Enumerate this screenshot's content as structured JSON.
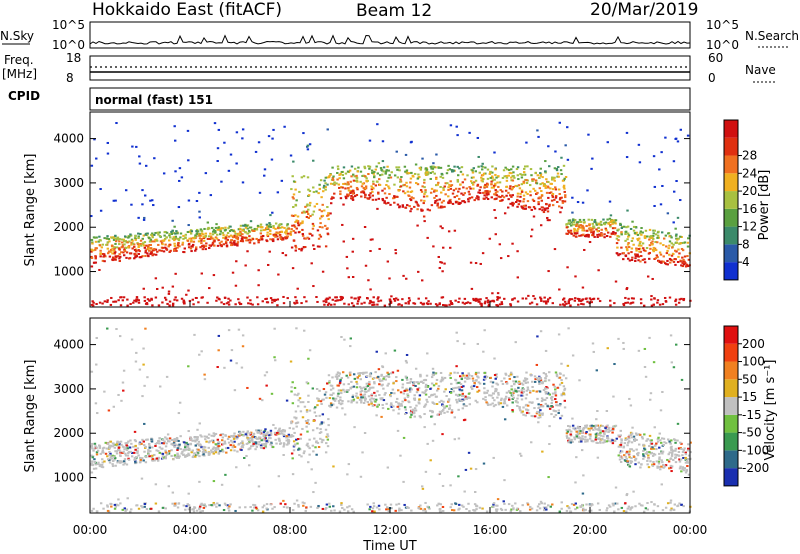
{
  "header": {
    "station": "Hokkaido East (fitACF)",
    "beam": "Beam 12",
    "date": "20/Mar/2019"
  },
  "top_panels": {
    "nsky_label": "N.Sky",
    "nsky_ticks": [
      "10^5",
      "10^0"
    ],
    "nsearch_label": "N.Search",
    "nsearch_ticks": [
      "10^5",
      "10^0"
    ],
    "freq_label": "Freq.",
    "freq_unit": "[MHz]",
    "freq_ticks": [
      "18",
      "8"
    ],
    "nave_label": "Nave",
    "nave_ticks": [
      "60",
      "0"
    ],
    "cpid_label": "CPID",
    "cpid_text": "normal (fast) 151"
  },
  "chart_data": [
    {
      "type": "heatmap",
      "name": "power-panel",
      "ylabel": "Slant Range [km]",
      "xlabel": "Time UT",
      "xlim": [
        "00:00",
        "24:00"
      ],
      "ylim": [
        200,
        4600
      ],
      "x_ticks": [
        "00:00",
        "04:00",
        "08:00",
        "12:00",
        "16:00",
        "20:00",
        "00:00"
      ],
      "y_ticks": [
        1000,
        2000,
        3000,
        4000
      ],
      "colorbar_label": "Power [dB]",
      "colorbar_ticks": [
        4,
        8,
        12,
        16,
        20,
        24,
        28
      ],
      "colors": [
        "#1030d0",
        "#2a5aa8",
        "#3b8a6a",
        "#5aa040",
        "#a8c040",
        "#f0b020",
        "#f07020",
        "#e03010",
        "#d01010"
      ]
    },
    {
      "type": "heatmap",
      "name": "velocity-panel",
      "ylabel": "Slant Range [km]",
      "xlabel": "Time UT",
      "xlim": [
        "00:00",
        "24:00"
      ],
      "ylim": [
        200,
        4600
      ],
      "x_ticks": [
        "00:00",
        "04:00",
        "08:00",
        "12:00",
        "16:00",
        "20:00",
        "00:00"
      ],
      "y_ticks": [
        1000,
        2000,
        3000,
        4000
      ],
      "colorbar_label": "Velocity [m s⁻¹]",
      "colorbar_ticks": [
        200,
        100,
        50,
        15,
        -15,
        -50,
        -100,
        -200
      ],
      "colors": [
        "#1a2fb0",
        "#2e6a8a",
        "#3a9a50",
        "#70c040",
        "#c0c0c0",
        "#e0b020",
        "#f08020",
        "#f04010",
        "#e01010"
      ]
    }
  ],
  "xaxis": {
    "label": "Time UT"
  }
}
